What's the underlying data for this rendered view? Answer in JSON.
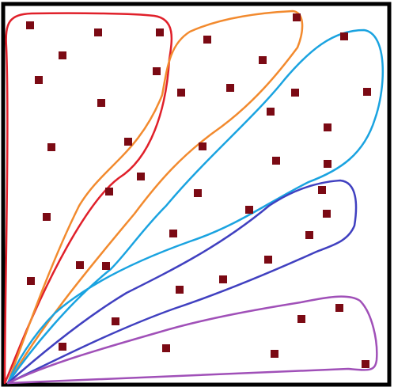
{
  "diagram": {
    "point_color": "#7b0a14",
    "frame_color": "#000000",
    "background": "#ffffff",
    "clusters": [
      {
        "name": "red",
        "color": "#e0202a",
        "points": [
          [
            38,
            32
          ],
          [
            124,
            41
          ],
          [
            202,
            41
          ],
          [
            79,
            70
          ],
          [
            49,
            101
          ],
          [
            198,
            90
          ],
          [
            128,
            130
          ],
          [
            65,
            186
          ],
          [
            162,
            179
          ],
          [
            138,
            242
          ],
          [
            59,
            274
          ],
          [
            101,
            335
          ],
          [
            134,
            336
          ],
          [
            39,
            355
          ]
        ]
      },
      {
        "name": "orange",
        "color": "#f28a2e",
        "points": [
          [
            375,
            22
          ],
          [
            262,
            50
          ],
          [
            332,
            76
          ],
          [
            229,
            117
          ],
          [
            291,
            111
          ],
          [
            256,
            185
          ],
          [
            178,
            223
          ],
          [
            250,
            244
          ],
          [
            219,
            295
          ]
        ]
      },
      {
        "name": "sky-blue",
        "color": "#1aa3e0",
        "points": [
          [
            435,
            46
          ],
          [
            373,
            117
          ],
          [
            464,
            116
          ],
          [
            342,
            141
          ],
          [
            414,
            161
          ],
          [
            349,
            203
          ],
          [
            414,
            207
          ],
          [
            315,
            265
          ],
          [
            146,
            406
          ],
          [
            79,
            438
          ]
        ]
      },
      {
        "name": "indigo",
        "color": "#4040c0",
        "points": [
          [
            407,
            240
          ],
          [
            413,
            270
          ],
          [
            391,
            297
          ],
          [
            339,
            328
          ],
          [
            282,
            353
          ],
          [
            227,
            366
          ]
        ]
      },
      {
        "name": "purple",
        "color": "#a050b8",
        "points": [
          [
            429,
            389
          ],
          [
            381,
            403
          ],
          [
            210,
            440
          ],
          [
            347,
            447
          ],
          [
            462,
            460
          ]
        ]
      }
    ]
  }
}
